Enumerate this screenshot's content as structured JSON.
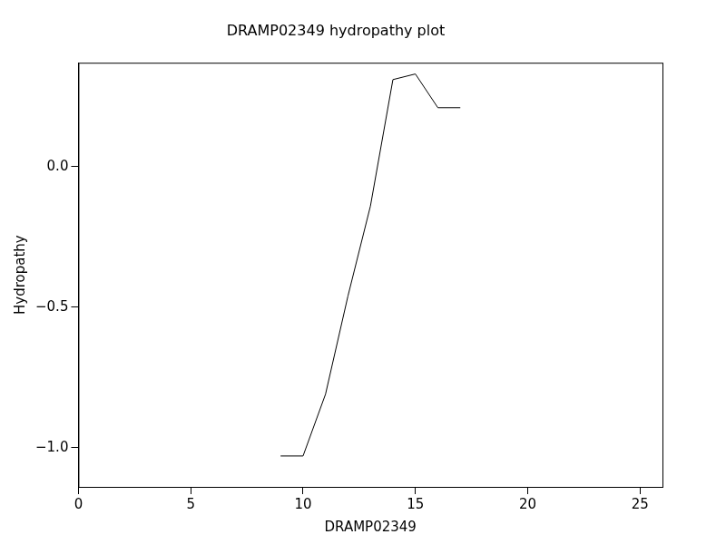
{
  "chart_data": {
    "type": "line",
    "title": "DRAMP02349 hydropathy plot",
    "x_label": "DRAMP02349",
    "y_label": "Hydropathy",
    "x": [
      9,
      10,
      11,
      12,
      13,
      14,
      15,
      16,
      17
    ],
    "values": [
      -1.03,
      -1.03,
      -0.81,
      -0.46,
      -0.14,
      0.31,
      0.33,
      0.21,
      0.21
    ],
    "color": "#000000",
    "xlim": [
      0,
      26
    ],
    "xticks": [
      0,
      5,
      10,
      15,
      20,
      25
    ],
    "ylim": [
      -1.14,
      0.37
    ],
    "yticks": [
      {
        "value": -1.0,
        "label": "−1.0"
      },
      {
        "value": -0.5,
        "label": "−0.5"
      },
      {
        "value": 0.0,
        "label": "0.0"
      }
    ],
    "grid": false
  }
}
